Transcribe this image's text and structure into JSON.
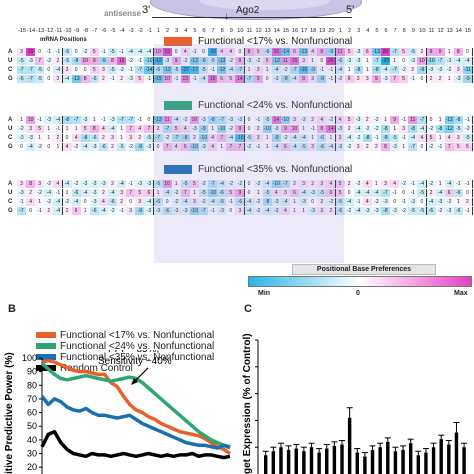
{
  "header": {
    "strand_label": "antisense",
    "three_prime": "3'",
    "five_prime": "5'",
    "protein_label": "Ago2",
    "mrna_positions_label": "mRNA Positions"
  },
  "positions": [
    "-15",
    "-14",
    "-13",
    "-12",
    "-11",
    "-10",
    "-9",
    "-8",
    "-7",
    "-6",
    "-5",
    "-4",
    "-3",
    "-2",
    "-1",
    "1",
    "2",
    "3",
    "4",
    "5",
    "6",
    "7",
    "8",
    "9",
    "10",
    "11",
    "12",
    "13",
    "14",
    "15",
    "16",
    "17",
    "18",
    "19",
    "20",
    "1",
    "2",
    "3",
    "4",
    "5",
    "6",
    "7",
    "8",
    "9",
    "10",
    "11",
    "12",
    "13",
    "14",
    "15"
  ],
  "row_letters": [
    "A",
    "U",
    "C",
    "G"
  ],
  "grids": [
    {
      "title": "Functional <17% vs. Nonfunctional",
      "color": "#e8602c",
      "rows": [
        [
          "3",
          "20",
          "0",
          "-1",
          "-1",
          "-5",
          "0",
          "-2",
          "5",
          "-1",
          "-5",
          "-1",
          "-4",
          "-4",
          "-4",
          "10",
          "19",
          "0",
          "4",
          "-1",
          "0",
          "-20",
          "4",
          "4",
          "0",
          "8",
          "5",
          "-6",
          "16",
          "-14",
          "6",
          "-13",
          "4",
          "8",
          "-9",
          "11",
          "5",
          "-3",
          "6",
          "-13",
          "20",
          "-7",
          "5",
          "-5",
          "2",
          "9",
          "9",
          "1",
          "8",
          "0"
        ],
        [
          "-5",
          "-3",
          "7",
          "-2",
          "2",
          "-5",
          "-8",
          "10",
          "9",
          "-9",
          "8",
          "16",
          "-2",
          "-1",
          "-10",
          "-19",
          "-3",
          "9",
          "-2",
          "-12",
          "-8",
          "-5",
          "-13",
          "-2",
          "8",
          "-3",
          "-2",
          "5",
          "-12",
          "11",
          "15",
          "3",
          "1",
          "0",
          "26",
          "-6",
          "-3",
          "-3",
          "1",
          "-7",
          "-20",
          "1",
          "0",
          "-3",
          "10",
          "-10",
          "-7",
          "-3",
          "-4",
          "-4"
        ],
        [
          "-7",
          "-7",
          "-5",
          "0",
          "-4",
          "3",
          "0",
          "0",
          "5",
          "3",
          "-5",
          "-2",
          "-1",
          "-7",
          "-14",
          "-6",
          "-12",
          "-5",
          "-27",
          "-17",
          "-5",
          "-1",
          "-12",
          "-4",
          "-7",
          "1",
          "3",
          "1",
          "-4",
          "-2",
          "-7",
          "-16",
          "-9",
          "-1",
          "-1",
          "-4",
          "1",
          "-8",
          "1",
          "-8",
          "-4",
          "-7",
          "-2",
          "2",
          "-9",
          "-3",
          "-3",
          "-2",
          "3",
          "-11"
        ],
        [
          "-6",
          "-7",
          "-5",
          "0",
          "3",
          "-4",
          "-13",
          "8",
          "-6",
          "2",
          "-1",
          "2",
          "-3",
          "5",
          "-1",
          "-15",
          "10",
          "-1",
          "13",
          "-1",
          "-4",
          "15",
          "6",
          "5",
          "14",
          "-7",
          "9",
          "0",
          "-3",
          "-8",
          "-4",
          "8",
          "3",
          "-9",
          "-1",
          "-2",
          "6",
          "3",
          "3",
          "9",
          "-3",
          "7",
          "5",
          "-1",
          "0",
          "2",
          "2",
          "1",
          "-3",
          "-9"
        ]
      ]
    },
    {
      "title": "Functional <24% vs. Nonfunctional",
      "color": "#2aa872",
      "rows": [
        [
          "1",
          "10",
          "-1",
          "-3",
          "-4",
          "-8",
          "-7",
          "-3",
          "1",
          "-1",
          "-3",
          "-7",
          "-7",
          "-1",
          "0",
          "-13",
          "11",
          "-4",
          "-2",
          "10",
          "-3",
          "-8",
          "-7",
          "-3",
          "-3",
          "0",
          "-1",
          "-5",
          "14",
          "-10",
          "3",
          "-2",
          "2",
          "4",
          "-2",
          "4",
          "5",
          "-3",
          "2",
          "-2",
          "1",
          "9",
          "-1",
          "11",
          "-7",
          "0",
          "1",
          "-12",
          "-8",
          "-1"
        ],
        [
          "-2",
          "3",
          "5",
          "1",
          "-1",
          "1",
          "1",
          "5",
          "8",
          "4",
          "-4",
          "1",
          "7",
          "4",
          "7",
          "2",
          "-7",
          "5",
          "4",
          "-3",
          "-9",
          "1",
          "-10",
          "-2",
          "9",
          "0",
          "2",
          "-10",
          "-3",
          "9",
          "10",
          "1",
          "-1",
          "8",
          "14",
          "-3",
          "2",
          "-4",
          "-2",
          "-2",
          "-8",
          "1",
          "3",
          "-8",
          "-4",
          "-2",
          "-8",
          "-12",
          "-5",
          "-2"
        ],
        [
          "-3",
          "-3",
          "1",
          "1",
          "2",
          "0",
          "4",
          "-8",
          "-6",
          "2",
          "3",
          "1",
          "3",
          "2",
          "-5",
          "-7",
          "-2",
          "-7",
          "-8",
          "2",
          "-10",
          "4",
          "7",
          "-4",
          "-16",
          "-5",
          "3",
          "1",
          "-9",
          "-2",
          "-4",
          "-4",
          "1",
          "-6",
          "1",
          "3",
          "-4",
          "-2",
          "-8",
          "-1",
          "-8",
          "-5",
          "-1",
          "-4",
          "4",
          "5",
          "1",
          "4",
          "3",
          "-5"
        ],
        [
          "0",
          "-4",
          "-2",
          "0",
          "1",
          "4",
          "-2",
          "-4",
          "-3",
          "-6",
          "2",
          "-5",
          "-2",
          "-9",
          "-3",
          "0",
          "7",
          "4",
          "6",
          "-10",
          "-3",
          "4",
          "1",
          "7",
          "7",
          "-2",
          "-1",
          "1",
          "-4",
          "6",
          "-4",
          "-5",
          "3",
          "-6",
          "-4",
          "-3",
          "-2",
          "3",
          "2",
          "2",
          "8",
          "-3",
          "1",
          "-7",
          "0",
          "-2",
          "-1",
          "7",
          "5",
          "5"
        ]
      ]
    },
    {
      "title": "Functional <35% vs. Nonfunctional",
      "color": "#1a6fb0",
      "rows": [
        [
          "3",
          "8",
          "3",
          "-2",
          "4",
          "-4",
          "-2",
          "-3",
          "-3",
          "-3",
          "2",
          "-4",
          "-1",
          "-3",
          "-3",
          "-5",
          "10",
          "1",
          "-5",
          "5",
          "-2",
          "-7",
          "-4",
          "-2",
          "-2",
          "0",
          "-2",
          "-4",
          "-10",
          "-7",
          "2",
          "3",
          "2",
          "3",
          "4",
          "5",
          "2",
          "-2",
          "4",
          "1",
          "3",
          "4",
          "-2",
          "-1",
          "-4",
          "-2",
          "1",
          "-4",
          "-1",
          "-1"
        ],
        [
          "-3",
          "2",
          "-2",
          "-4",
          "-1",
          "1",
          "-6",
          "-4",
          "-3",
          "2",
          "-4",
          "3",
          "7",
          "5",
          "6",
          "1",
          "-4",
          "-2",
          "7",
          "1",
          "-5",
          "-10",
          "-6",
          "5",
          "9",
          "0",
          "1",
          "-5",
          "4",
          "3",
          "6",
          "-4",
          "-3",
          "-5",
          "6",
          "5",
          "0",
          "-4",
          "-4",
          "-4",
          "-7",
          "-1",
          "0",
          "-1",
          "-5",
          "2",
          "-4",
          "6",
          "-6",
          "0"
        ],
        [
          "-1",
          "4",
          "1",
          "-2",
          "-4",
          "-2",
          "-4",
          "0",
          "-3",
          "4",
          "-6",
          "2",
          "0",
          "3",
          "-4",
          "-6",
          "0",
          "-2",
          "-4",
          "3",
          "-2",
          "-4",
          "-5",
          "-1",
          "-6",
          "-4",
          "-2",
          "-8",
          "-3",
          "-4",
          "1",
          "-3",
          "0",
          "2",
          "-2",
          "-5",
          "-4",
          "-1",
          "4",
          "-2",
          "-3",
          "0",
          "-1",
          "-3",
          "0",
          "-4",
          "-3",
          "-2",
          "1",
          "2"
        ],
        [
          "-7",
          "0",
          "-1",
          "2",
          "-4",
          "2",
          "6",
          "1",
          "-6",
          "-4",
          "-2",
          "-1",
          "3",
          "-9",
          "-3",
          "-3",
          "-6",
          "-3",
          "-3",
          "-10",
          "-7",
          "-1",
          "-3",
          "0",
          "3",
          "-4",
          "-2",
          "-4",
          "-3",
          "4",
          "1",
          "1",
          "-3",
          "3",
          "2",
          "-6",
          "-2",
          "-4",
          "-3",
          "-3",
          "-8",
          "-3",
          "-2",
          "-5",
          "-5",
          "-6",
          "-2",
          "-3",
          "-6",
          "-1"
        ]
      ]
    }
  ],
  "preferences": {
    "title": "Positional Base Preferences",
    "min_label": "Min",
    "zero_label": "0",
    "max_label": "Max"
  },
  "panel_b": {
    "label": "B",
    "ylabel": "itive Predictive Power (%)",
    "annotation_line1": "PPP ~85%,",
    "annotation_line2": "Sensitivity ~40%",
    "legend": [
      {
        "name": "Functional <17% vs. Nonfunctional",
        "color": "#e8602c"
      },
      {
        "name": "Functional <24% vs. Nonfunctional",
        "color": "#2aa872"
      },
      {
        "name": "Functional <35% vs. Nonfunctional",
        "color": "#1a6fb0"
      },
      {
        "name": "Random Control",
        "color": "#000000"
      }
    ],
    "yticks": [
      "100",
      "90",
      "80",
      "70",
      "60",
      "50",
      "40",
      "30",
      "20"
    ]
  },
  "panel_c": {
    "label": "C",
    "ylabel": "get Expression (% of Control)",
    "yticks": [
      "100",
      "80",
      "60",
      "40",
      "20"
    ],
    "bars": [
      14,
      17,
      20,
      18,
      19,
      17,
      20,
      16,
      19,
      21,
      22,
      42,
      16,
      13,
      18,
      20,
      24,
      17,
      18,
      23,
      14,
      16,
      20,
      26,
      22,
      31,
      20
    ]
  },
  "chart_data": {
    "type": "line",
    "x": [
      0,
      1,
      2,
      3,
      4,
      5,
      6,
      7,
      8,
      9,
      10,
      11,
      12,
      13,
      14,
      15,
      16,
      17,
      18,
      19,
      20,
      21,
      22,
      23,
      24,
      25,
      26,
      27,
      28,
      29,
      30
    ],
    "ylim": [
      15,
      100
    ],
    "series": [
      {
        "name": "Functional <17% vs. Nonfunctional",
        "values": [
          97,
          98,
          97,
          95,
          93,
          91,
          90,
          90,
          89,
          88,
          88,
          82,
          79,
          72,
          66,
          62,
          60,
          57,
          55,
          52,
          50,
          48,
          46,
          45,
          44,
          43,
          41,
          38,
          35,
          33,
          30
        ]
      },
      {
        "name": "Functional <24% vs. Nonfunctional",
        "values": [
          96,
          92,
          88,
          85,
          84,
          85,
          86,
          87,
          86,
          85,
          84,
          83,
          84,
          85,
          86,
          85,
          82,
          78,
          74,
          70,
          66,
          62,
          58,
          54,
          50,
          46,
          43,
          40,
          38,
          36,
          34
        ]
      },
      {
        "name": "Functional <35% vs. Nonfunctional",
        "values": [
          72,
          66,
          70,
          68,
          64,
          62,
          61,
          63,
          60,
          58,
          58,
          57,
          56,
          57,
          58,
          55,
          52,
          50,
          48,
          46,
          44,
          42,
          40,
          38,
          37,
          36,
          36,
          35,
          34,
          36,
          35
        ]
      },
      {
        "name": "Random Control",
        "values": [
          35,
          44,
          46,
          38,
          33,
          30,
          29,
          28,
          30,
          29,
          29,
          28,
          29,
          30,
          29,
          28,
          29,
          30,
          29,
          28,
          29,
          28,
          29,
          29,
          30,
          28,
          29,
          29,
          28,
          27,
          28
        ]
      }
    ]
  }
}
